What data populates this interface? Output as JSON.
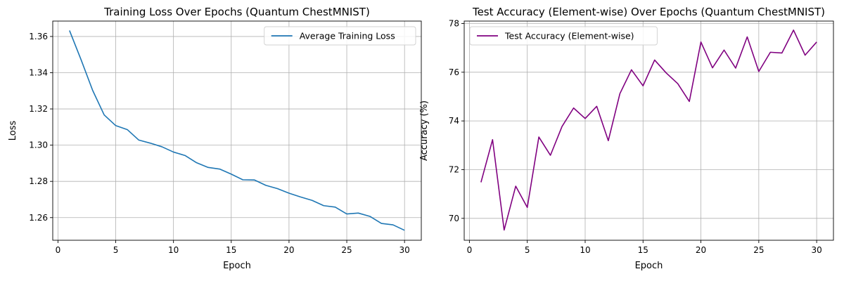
{
  "chart_data": [
    {
      "type": "line",
      "title": "Training Loss Over Epochs (Quantum ChestMNIST)",
      "xlabel": "Epoch",
      "ylabel": "Loss",
      "xlim": [
        -0.45,
        31.45
      ],
      "ylim": [
        1.2475,
        1.3685
      ],
      "xticks": [
        0,
        5,
        10,
        15,
        20,
        25,
        30
      ],
      "yticks": [
        1.26,
        1.28,
        1.3,
        1.32,
        1.34,
        1.36
      ],
      "ytick_decimals": 2,
      "grid": true,
      "legend_position": "top-right",
      "series": [
        {
          "name": "Average Training Loss",
          "color": "#1f77b4",
          "x": [
            1,
            2,
            3,
            4,
            5,
            6,
            7,
            8,
            9,
            10,
            11,
            12,
            13,
            14,
            15,
            16,
            17,
            18,
            19,
            20,
            21,
            22,
            23,
            24,
            25,
            26,
            27,
            28,
            29,
            30
          ],
          "y": [
            1.3633,
            1.3472,
            1.3303,
            1.3167,
            1.3108,
            1.3086,
            1.3028,
            1.3011,
            1.2991,
            1.2962,
            1.2943,
            1.2903,
            1.2877,
            1.2868,
            1.284,
            1.2809,
            1.2808,
            1.2778,
            1.276,
            1.2735,
            1.2714,
            1.2695,
            1.2666,
            1.2658,
            1.262,
            1.2625,
            1.2607,
            1.2568,
            1.256,
            1.253
          ]
        }
      ]
    },
    {
      "type": "line",
      "title": "Test Accuracy (Element-wise) Over Epochs (Quantum ChestMNIST)",
      "xlabel": "Epoch",
      "ylabel": "Accuracy (%)",
      "xlim": [
        -0.45,
        31.45
      ],
      "ylim": [
        69.1,
        78.1
      ],
      "xticks": [
        0,
        5,
        10,
        15,
        20,
        25,
        30
      ],
      "yticks": [
        70,
        72,
        74,
        76,
        78
      ],
      "ytick_decimals": 0,
      "grid": true,
      "legend_position": "top-left",
      "series": [
        {
          "name": "Test Accuracy (Element-wise)",
          "color": "#800080",
          "x": [
            1,
            2,
            3,
            4,
            5,
            6,
            7,
            8,
            9,
            10,
            11,
            12,
            13,
            14,
            15,
            16,
            17,
            18,
            19,
            20,
            21,
            22,
            23,
            24,
            25,
            26,
            27,
            28,
            29,
            30
          ],
          "y": [
            71.48,
            73.23,
            69.52,
            71.32,
            70.45,
            73.34,
            72.59,
            73.77,
            74.53,
            74.1,
            74.6,
            73.19,
            75.12,
            76.1,
            75.44,
            76.5,
            75.97,
            75.53,
            74.8,
            77.24,
            76.18,
            76.91,
            76.17,
            77.45,
            76.03,
            76.82,
            76.79,
            77.73,
            76.7,
            77.24
          ]
        }
      ]
    }
  ]
}
